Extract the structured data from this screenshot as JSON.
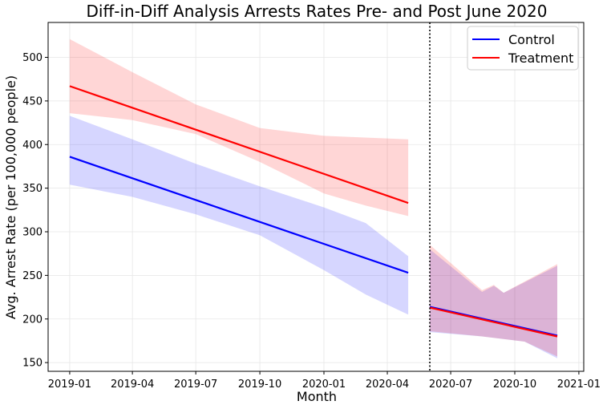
{
  "chart_data": {
    "type": "line",
    "title": "Diff-in-Diff Analysis Arrests Rates Pre- and Post June 2020",
    "xlabel": "Month",
    "ylabel": "Avg. Arrest Rate (per 100,000 people)",
    "xlim": [
      "2018-12-01",
      "2021-01-08"
    ],
    "ylim": [
      140,
      540
    ],
    "x_ticks": [
      "2019-01",
      "2019-04",
      "2019-07",
      "2019-10",
      "2020-01",
      "2020-04",
      "2020-07",
      "2020-10",
      "2021-01"
    ],
    "y_ticks": [
      150,
      200,
      250,
      300,
      350,
      400,
      450,
      500
    ],
    "grid": true,
    "legend_position": "top-right",
    "cutoff_date": "2020-06-01",
    "series": [
      {
        "name": "Control",
        "color": "#0000ff",
        "band_color": "#0000ff",
        "segments": [
          {
            "line": [
              [
                "2019-01-01",
                386
              ],
              [
                "2020-05-01",
                253
              ]
            ],
            "band_upper": [
              [
                "2019-01-01",
                433
              ],
              [
                "2019-04-01",
                406
              ],
              [
                "2019-07-01",
                378
              ],
              [
                "2019-10-01",
                352
              ],
              [
                "2020-01-01",
                328
              ],
              [
                "2020-03-01",
                310
              ],
              [
                "2020-05-01",
                272
              ]
            ],
            "band_lower": [
              [
                "2019-01-01",
                354
              ],
              [
                "2019-04-01",
                340
              ],
              [
                "2019-07-01",
                320
              ],
              [
                "2019-10-01",
                296
              ],
              [
                "2020-01-01",
                256
              ],
              [
                "2020-03-01",
                228
              ],
              [
                "2020-05-01",
                205
              ]
            ]
          },
          {
            "line": [
              [
                "2020-06-01",
                214
              ],
              [
                "2020-12-01",
                181
              ]
            ],
            "band_upper": [
              [
                "2020-06-01",
                280
              ],
              [
                "2020-08-15",
                231
              ],
              [
                "2020-09-01",
                238
              ],
              [
                "2020-09-15",
                230
              ],
              [
                "2020-12-01",
                261
              ]
            ],
            "band_lower": [
              [
                "2020-06-01",
                185
              ],
              [
                "2020-08-15",
                180
              ],
              [
                "2020-10-15",
                174
              ],
              [
                "2020-12-01",
                155
              ]
            ]
          }
        ]
      },
      {
        "name": "Treatment",
        "color": "#ff0000",
        "band_color": "#ff0000",
        "segments": [
          {
            "line": [
              [
                "2019-01-01",
                467
              ],
              [
                "2020-05-01",
                333
              ]
            ],
            "band_upper": [
              [
                "2019-01-01",
                521
              ],
              [
                "2019-04-01",
                483
              ],
              [
                "2019-07-01",
                446
              ],
              [
                "2019-10-01",
                419
              ],
              [
                "2020-01-01",
                410
              ],
              [
                "2020-05-01",
                406
              ]
            ],
            "band_lower": [
              [
                "2019-01-01",
                436
              ],
              [
                "2019-04-01",
                428
              ],
              [
                "2019-07-01",
                412
              ],
              [
                "2019-10-01",
                380
              ],
              [
                "2020-01-01",
                344
              ],
              [
                "2020-03-01",
                330
              ],
              [
                "2020-05-01",
                318
              ]
            ]
          },
          {
            "line": [
              [
                "2020-06-01",
                213
              ],
              [
                "2020-12-01",
                180
              ]
            ],
            "band_upper": [
              [
                "2020-06-01",
                285
              ],
              [
                "2020-08-15",
                233
              ],
              [
                "2020-09-01",
                239
              ],
              [
                "2020-09-15",
                230
              ],
              [
                "2020-12-01",
                263
              ]
            ],
            "band_lower": [
              [
                "2020-06-01",
                186
              ],
              [
                "2020-08-15",
                180
              ],
              [
                "2020-10-15",
                174
              ],
              [
                "2020-12-01",
                157
              ]
            ]
          }
        ]
      }
    ]
  }
}
